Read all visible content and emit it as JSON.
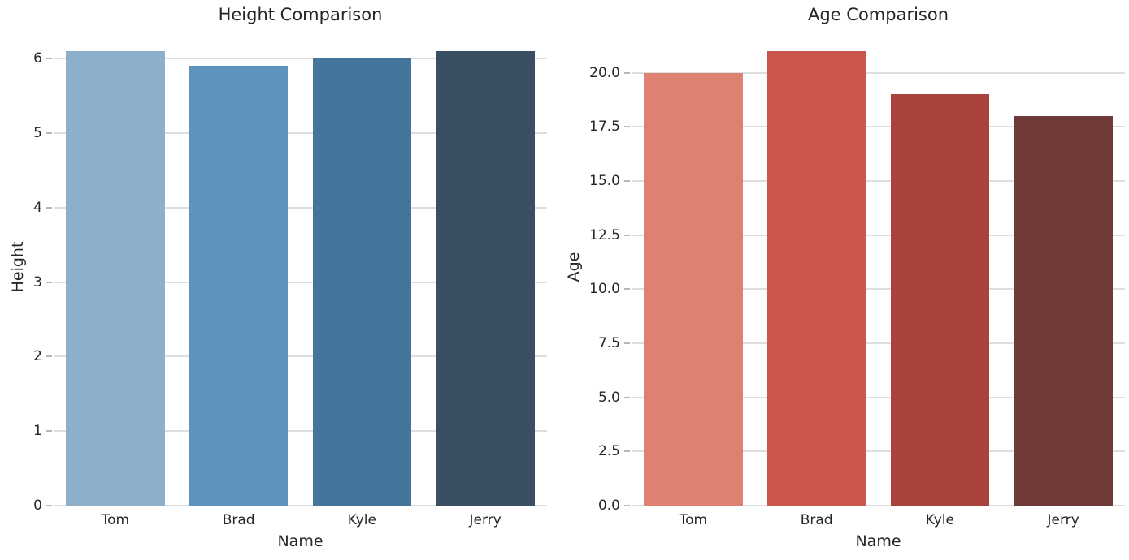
{
  "chart_data": [
    {
      "type": "bar",
      "title": "Height Comparison",
      "xlabel": "Name",
      "ylabel": "Height",
      "categories": [
        "Tom",
        "Brad",
        "Kyle",
        "Jerry"
      ],
      "values": [
        6.1,
        5.9,
        6.0,
        6.1
      ],
      "ylim": [
        0,
        6.405
      ],
      "yticks": [
        {
          "value": 0,
          "label": "0"
        },
        {
          "value": 1,
          "label": "1"
        },
        {
          "value": 2,
          "label": "2"
        },
        {
          "value": 3,
          "label": "3"
        },
        {
          "value": 4,
          "label": "4"
        },
        {
          "value": 5,
          "label": "5"
        },
        {
          "value": 6,
          "label": "6"
        }
      ],
      "grid": true,
      "legend": false,
      "bar_colors": [
        "#8CB0CC",
        "#5D93BC",
        "#44769B",
        "#3B4F63"
      ]
    },
    {
      "type": "bar",
      "title": "Age Comparison",
      "xlabel": "Name",
      "ylabel": "Age",
      "categories": [
        "Tom",
        "Brad",
        "Kyle",
        "Jerry"
      ],
      "values": [
        20,
        21,
        19,
        18
      ],
      "ylim": [
        0,
        22.05
      ],
      "yticks": [
        {
          "value": 0,
          "label": "0.0"
        },
        {
          "value": 2.5,
          "label": "2.5"
        },
        {
          "value": 5,
          "label": "5.0"
        },
        {
          "value": 7.5,
          "label": "7.5"
        },
        {
          "value": 10,
          "label": "10.0"
        },
        {
          "value": 12.5,
          "label": "12.5"
        },
        {
          "value": 15,
          "label": "15.0"
        },
        {
          "value": 17.5,
          "label": "17.5"
        },
        {
          "value": 20,
          "label": "20.0"
        }
      ],
      "grid": true,
      "legend": false,
      "bar_colors": [
        "#DD8171",
        "#CB564C",
        "#AB433D",
        "#6F3A37"
      ]
    }
  ],
  "style": {
    "background": "#ffffff",
    "grid_color": "#dedede",
    "tick_color": "#b5b5b5",
    "text_color": "#262626"
  }
}
